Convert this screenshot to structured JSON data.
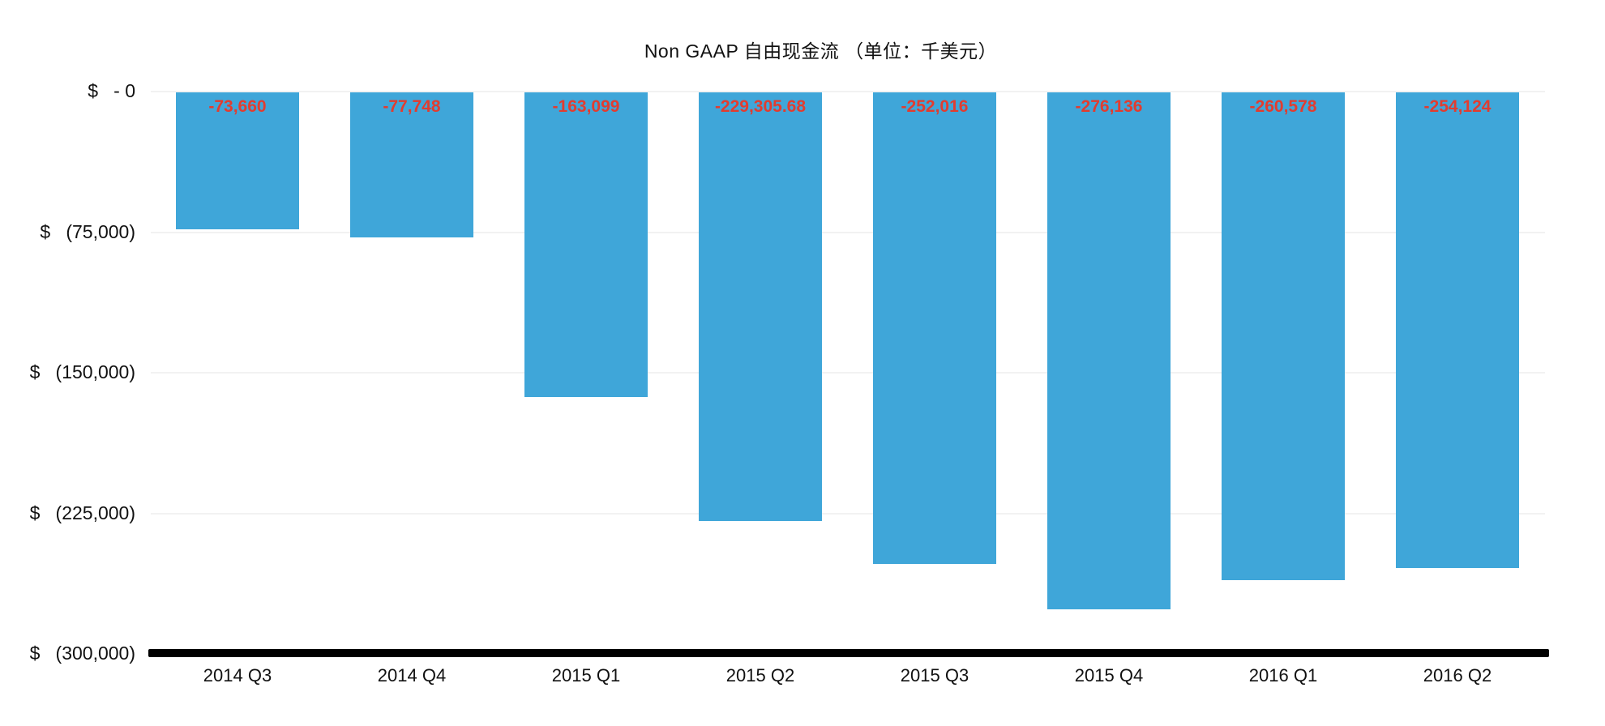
{
  "chart_data": {
    "type": "bar",
    "title": "Non GAAP 自由现金流 （单位：千美元）",
    "categories": [
      "2014 Q3",
      "2014 Q4",
      "2015 Q1",
      "2015 Q2",
      "2015 Q3",
      "2015 Q4",
      "2016 Q1",
      "2016 Q2"
    ],
    "values": [
      -73660,
      -77748,
      -163099,
      -229305.68,
      -252016,
      -276136,
      -260578,
      -254124
    ],
    "bar_labels": [
      "-73,660",
      "-77,748",
      "-163,099",
      "-229,305.68",
      "-252,016",
      "-276,136",
      "-260,578",
      "-254,124"
    ],
    "xlabel": "",
    "ylabel": "",
    "ylim": [
      -300000,
      0
    ],
    "y_ticks": [
      {
        "value": 0,
        "label": "$   - 0"
      },
      {
        "value": -75000,
        "label": "$   (75,000)"
      },
      {
        "value": -150000,
        "label": "$   (150,000)"
      },
      {
        "value": -225000,
        "label": "$   (225,000)"
      },
      {
        "value": -300000,
        "label": "$   (300,000)"
      }
    ],
    "grid": true,
    "legend": "none",
    "colors": {
      "bar": "#3FA6D9",
      "bar_label": "#E23C2F",
      "gridline": "#F2F2F2",
      "axis": "#000000",
      "text": "#111111",
      "background": "#FFFFFF"
    }
  }
}
